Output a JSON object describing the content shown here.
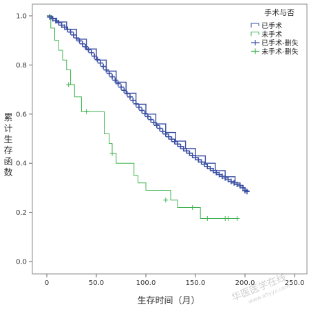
{
  "chart_data": {
    "type": "line",
    "step": true,
    "xlabel": "生存时间（月）",
    "ylabel": "累计生存函数",
    "xlim": [
      0,
      250
    ],
    "ylim": [
      0,
      1
    ],
    "xticks": [
      0,
      50,
      100,
      150,
      200,
      250
    ],
    "xtick_labels": [
      "0",
      "50.0",
      "100.0",
      "150.0",
      "200.0",
      "250.0"
    ],
    "yticks": [
      0,
      0.2,
      0.4,
      0.6,
      0.8,
      1.0
    ],
    "ytick_labels": [
      "0.0",
      "0.2",
      "0.4",
      "0.6",
      "0.8",
      "1.0"
    ],
    "grid": false,
    "legend_title": "手术与否",
    "legend_position": "top-right",
    "legend_entries": [
      "已手术",
      "未手术",
      "已手术-删失",
      "未手术-删失"
    ],
    "series": [
      {
        "name": "已手术",
        "color": "#3a4fa3",
        "x": [
          0,
          5,
          10,
          20,
          30,
          40,
          50,
          60,
          70,
          80,
          90,
          100,
          110,
          120,
          130,
          140,
          150,
          160,
          170,
          180,
          190,
          195,
          198,
          200,
          203
        ],
        "y": [
          1.0,
          0.99,
          0.975,
          0.945,
          0.905,
          0.865,
          0.82,
          0.775,
          0.73,
          0.685,
          0.64,
          0.6,
          0.56,
          0.525,
          0.49,
          0.46,
          0.43,
          0.4,
          0.37,
          0.345,
          0.32,
          0.31,
          0.3,
          0.29,
          0.285
        ]
      },
      {
        "name": "未手术",
        "color": "#3fb34f",
        "x": [
          0,
          4,
          8,
          12,
          16,
          20,
          24,
          28,
          35,
          40,
          50,
          58,
          63,
          66,
          70,
          80,
          88,
          92,
          100,
          110,
          125,
          132,
          147,
          155,
          190
        ],
        "y": [
          1.0,
          0.95,
          0.9,
          0.86,
          0.82,
          0.78,
          0.72,
          0.67,
          0.61,
          0.61,
          0.61,
          0.52,
          0.48,
          0.44,
          0.4,
          0.4,
          0.35,
          0.32,
          0.29,
          0.29,
          0.25,
          0.22,
          0.22,
          0.175,
          0.175
        ]
      }
    ],
    "censored": [
      {
        "name": "已手术-删失",
        "color": "#3a4fa3",
        "x": [
          3,
          6,
          9,
          12,
          15,
          18,
          21,
          24,
          27,
          30,
          33,
          36,
          39,
          42,
          45,
          48,
          51,
          54,
          57,
          60,
          63,
          66,
          69,
          72,
          75,
          78,
          81,
          84,
          87,
          90,
          93,
          96,
          99,
          102,
          105,
          108,
          111,
          114,
          117,
          120,
          123,
          126,
          129,
          132,
          135,
          138,
          141,
          144,
          147,
          150,
          153,
          156,
          159,
          162,
          165,
          168,
          171,
          174,
          177,
          180,
          183,
          186,
          189,
          192,
          195,
          198,
          200,
          202
        ],
        "y": [
          0.995,
          0.988,
          0.98,
          0.972,
          0.962,
          0.954,
          0.945,
          0.934,
          0.922,
          0.91,
          0.898,
          0.886,
          0.874,
          0.862,
          0.85,
          0.836,
          0.822,
          0.808,
          0.794,
          0.78,
          0.766,
          0.752,
          0.738,
          0.724,
          0.71,
          0.697,
          0.683,
          0.67,
          0.656,
          0.642,
          0.628,
          0.615,
          0.602,
          0.59,
          0.578,
          0.566,
          0.554,
          0.542,
          0.53,
          0.519,
          0.508,
          0.498,
          0.488,
          0.478,
          0.468,
          0.459,
          0.45,
          0.441,
          0.432,
          0.423,
          0.414,
          0.405,
          0.396,
          0.387,
          0.378,
          0.37,
          0.362,
          0.354,
          0.347,
          0.34,
          0.333,
          0.326,
          0.32,
          0.314,
          0.308,
          0.3,
          0.288,
          0.285
        ]
      },
      {
        "name": "未手术-删失",
        "color": "#3fb34f",
        "x": [
          22,
          40,
          66,
          120,
          147,
          162,
          180,
          183,
          192
        ],
        "y": [
          0.72,
          0.61,
          0.44,
          0.25,
          0.22,
          0.175,
          0.175,
          0.175,
          0.175
        ]
      }
    ]
  },
  "watermark": {
    "main": "华医医学在线",
    "url": "www.ahyyz.com"
  }
}
